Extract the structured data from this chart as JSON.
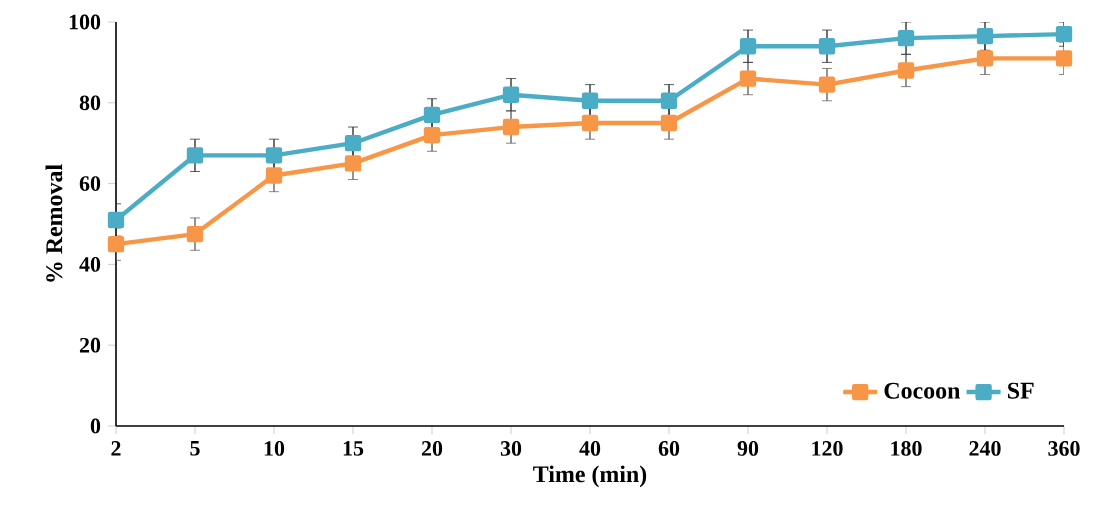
{
  "chart_data": {
    "type": "line",
    "xlabel": "Time (min)",
    "ylabel": "% Removal",
    "categories": [
      "2",
      "5",
      "10",
      "15",
      "20",
      "30",
      "40",
      "60",
      "90",
      "120",
      "180",
      "240",
      "360"
    ],
    "series": [
      {
        "name": "Cocoon",
        "color": "#f79646",
        "values": [
          45,
          47.5,
          62,
          65,
          72,
          74,
          75,
          75,
          86,
          84.5,
          88,
          91,
          91
        ],
        "errors": [
          4,
          4,
          4,
          4,
          4,
          4,
          4,
          4,
          4,
          4,
          4,
          4,
          4
        ]
      },
      {
        "name": "SF",
        "color": "#4bacc6",
        "values": [
          51,
          67,
          67,
          70,
          77,
          82,
          80.5,
          80.5,
          94,
          94,
          96,
          96.5,
          97
        ],
        "errors": [
          4,
          4,
          4,
          4,
          4,
          4,
          4,
          4,
          4,
          4,
          4,
          3.5,
          3
        ]
      }
    ],
    "ylim": [
      0,
      100
    ],
    "yticks": [
      0,
      20,
      40,
      60,
      80,
      100
    ],
    "grid": false,
    "legend": "bottom right",
    "marker": "square",
    "line_style": "solid"
  }
}
